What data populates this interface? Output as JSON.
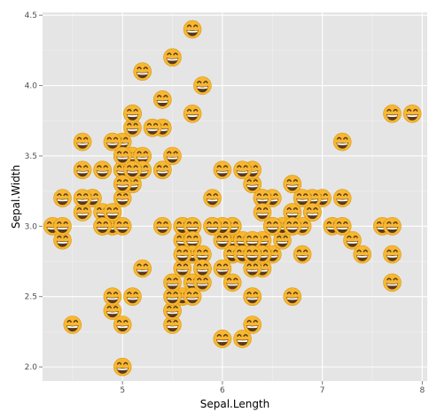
{
  "chart_data": {
    "type": "scatter",
    "title": "",
    "xlabel": "Sepal.Length",
    "ylabel": "Sepal.Width",
    "xlim": [
      4.2,
      8.05
    ],
    "ylim": [
      1.9,
      4.52
    ],
    "x_ticks": [
      5,
      6,
      7,
      8
    ],
    "y_ticks": [
      2.0,
      2.5,
      3.0,
      3.5,
      4.0,
      4.5
    ],
    "x_tick_labels": [
      "5",
      "6",
      "7",
      "8"
    ],
    "y_tick_labels": [
      "2.0",
      "2.5",
      "3.0",
      "3.5",
      "4.0",
      "4.5"
    ],
    "grid": true,
    "marker": "grinning-face-emoji",
    "colors": {
      "panel_bg": "#e5e5e5",
      "grid_major": "#ffffff",
      "marker_fill": "#f7b731",
      "marker_dark": "#5a3a1a"
    },
    "points": [
      [
        5.1,
        3.5
      ],
      [
        4.9,
        3.0
      ],
      [
        4.7,
        3.2
      ],
      [
        4.6,
        3.1
      ],
      [
        5.0,
        3.6
      ],
      [
        5.4,
        3.9
      ],
      [
        4.6,
        3.4
      ],
      [
        5.0,
        3.4
      ],
      [
        4.4,
        2.9
      ],
      [
        4.9,
        3.1
      ],
      [
        5.4,
        3.7
      ],
      [
        4.8,
        3.4
      ],
      [
        4.8,
        3.0
      ],
      [
        4.3,
        3.0
      ],
      [
        5.8,
        4.0
      ],
      [
        5.7,
        4.4
      ],
      [
        5.4,
        3.9
      ],
      [
        5.1,
        3.5
      ],
      [
        5.7,
        3.8
      ],
      [
        5.1,
        3.8
      ],
      [
        5.4,
        3.4
      ],
      [
        5.1,
        3.7
      ],
      [
        4.6,
        3.6
      ],
      [
        5.1,
        3.3
      ],
      [
        4.8,
        3.4
      ],
      [
        5.0,
        3.0
      ],
      [
        5.0,
        3.4
      ],
      [
        5.2,
        3.5
      ],
      [
        5.2,
        3.4
      ],
      [
        4.7,
        3.2
      ],
      [
        4.8,
        3.1
      ],
      [
        5.4,
        3.4
      ],
      [
        5.2,
        4.1
      ],
      [
        5.5,
        4.2
      ],
      [
        4.9,
        3.1
      ],
      [
        5.0,
        3.2
      ],
      [
        5.5,
        3.5
      ],
      [
        4.9,
        3.6
      ],
      [
        4.4,
        3.0
      ],
      [
        5.1,
        3.4
      ],
      [
        5.0,
        3.5
      ],
      [
        4.5,
        2.3
      ],
      [
        4.4,
        3.2
      ],
      [
        5.0,
        3.5
      ],
      [
        5.1,
        3.8
      ],
      [
        4.8,
        3.0
      ],
      [
        5.1,
        3.8
      ],
      [
        4.6,
        3.2
      ],
      [
        5.3,
        3.7
      ],
      [
        5.0,
        3.3
      ],
      [
        7.0,
        3.2
      ],
      [
        6.4,
        3.2
      ],
      [
        6.9,
        3.1
      ],
      [
        5.5,
        2.3
      ],
      [
        6.5,
        2.8
      ],
      [
        5.7,
        2.8
      ],
      [
        6.3,
        3.3
      ],
      [
        4.9,
        2.4
      ],
      [
        6.6,
        2.9
      ],
      [
        5.2,
        2.7
      ],
      [
        5.0,
        2.0
      ],
      [
        5.9,
        3.0
      ],
      [
        6.0,
        2.2
      ],
      [
        6.1,
        2.9
      ],
      [
        5.6,
        2.9
      ],
      [
        6.7,
        3.1
      ],
      [
        5.6,
        3.0
      ],
      [
        5.8,
        2.7
      ],
      [
        6.2,
        2.2
      ],
      [
        5.6,
        2.5
      ],
      [
        5.9,
        3.2
      ],
      [
        6.1,
        2.8
      ],
      [
        6.3,
        2.5
      ],
      [
        6.1,
        2.8
      ],
      [
        6.4,
        2.9
      ],
      [
        6.6,
        3.0
      ],
      [
        6.8,
        2.8
      ],
      [
        6.7,
        3.0
      ],
      [
        6.0,
        2.9
      ],
      [
        5.7,
        2.6
      ],
      [
        5.5,
        2.4
      ],
      [
        5.5,
        2.4
      ],
      [
        5.8,
        2.7
      ],
      [
        6.0,
        2.7
      ],
      [
        5.4,
        3.0
      ],
      [
        6.0,
        3.4
      ],
      [
        6.7,
        3.1
      ],
      [
        6.3,
        2.3
      ],
      [
        5.6,
        3.0
      ],
      [
        5.5,
        2.5
      ],
      [
        5.5,
        2.6
      ],
      [
        6.1,
        3.0
      ],
      [
        5.8,
        2.6
      ],
      [
        5.0,
        2.3
      ],
      [
        5.6,
        2.7
      ],
      [
        5.7,
        3.0
      ],
      [
        5.7,
        2.9
      ],
      [
        6.2,
        2.9
      ],
      [
        5.1,
        2.5
      ],
      [
        5.7,
        2.8
      ],
      [
        6.3,
        3.3
      ],
      [
        5.8,
        2.7
      ],
      [
        7.1,
        3.0
      ],
      [
        6.3,
        2.9
      ],
      [
        6.5,
        3.0
      ],
      [
        7.6,
        3.0
      ],
      [
        4.9,
        2.5
      ],
      [
        7.3,
        2.9
      ],
      [
        6.7,
        2.5
      ],
      [
        7.2,
        3.6
      ],
      [
        6.5,
        3.2
      ],
      [
        6.4,
        2.7
      ],
      [
        6.8,
        3.0
      ],
      [
        5.7,
        2.5
      ],
      [
        5.8,
        2.8
      ],
      [
        6.4,
        3.2
      ],
      [
        6.5,
        3.0
      ],
      [
        7.7,
        3.8
      ],
      [
        7.7,
        2.6
      ],
      [
        6.0,
        2.2
      ],
      [
        6.9,
        3.2
      ],
      [
        5.6,
        2.8
      ],
      [
        7.7,
        2.8
      ],
      [
        6.3,
        2.7
      ],
      [
        6.7,
        3.3
      ],
      [
        7.2,
        3.2
      ],
      [
        6.2,
        2.8
      ],
      [
        6.1,
        3.0
      ],
      [
        6.4,
        2.8
      ],
      [
        7.2,
        3.0
      ],
      [
        7.4,
        2.8
      ],
      [
        7.9,
        3.8
      ],
      [
        6.4,
        2.8
      ],
      [
        6.3,
        2.8
      ],
      [
        6.1,
        2.6
      ],
      [
        7.7,
        3.0
      ],
      [
        6.3,
        3.4
      ],
      [
        6.4,
        3.1
      ],
      [
        6.0,
        3.0
      ],
      [
        6.9,
        3.1
      ],
      [
        6.7,
        3.1
      ],
      [
        6.9,
        3.1
      ],
      [
        5.8,
        2.7
      ],
      [
        6.8,
        3.2
      ],
      [
        6.7,
        3.3
      ],
      [
        6.7,
        3.0
      ],
      [
        6.3,
        2.5
      ],
      [
        6.5,
        3.0
      ],
      [
        6.2,
        3.4
      ],
      [
        5.9,
        3.0
      ]
    ]
  }
}
